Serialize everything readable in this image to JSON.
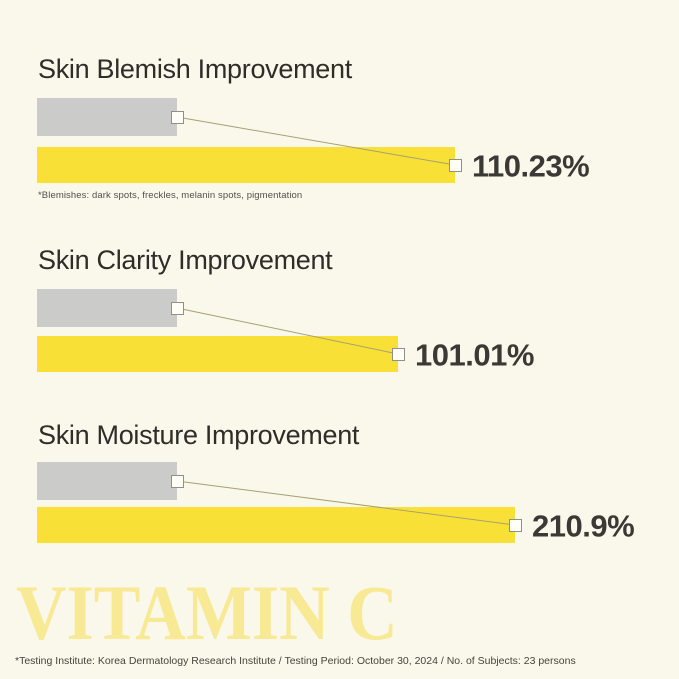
{
  "page": {
    "product_name": "VITAMIN C",
    "footer_note": "*Testing Institute: Korea Dermatology Research Institute / Testing Period: October 30, 2024 / No. of Subjects: 23 persons",
    "background_color": "#faf8ea"
  },
  "chart_data": {
    "type": "bar",
    "orientation": "horizontal",
    "unit": "%",
    "grid": false,
    "legend_position": "none",
    "series_meaning": "each group shows a short gray baseline bar (before) and a long yellow bar (after) linked by a connector line with square handles; only the after value is labeled",
    "groups": [
      {
        "title": "Skin Blemish Improvement",
        "value": 110.23,
        "value_label": "110.23%",
        "footnote": "*Blemishes: dark spots, freckles, melanin spots, pigmentation"
      },
      {
        "title": "Skin Clarity Improvement",
        "value": 101.01,
        "value_label": "101.01%",
        "footnote": ""
      },
      {
        "title": "Skin Moisture Improvement",
        "value": 210.9,
        "value_label": "210.9%",
        "footnote": ""
      }
    ],
    "colors": {
      "background": "#faf8ea",
      "before_bar": "#cbcbc9",
      "after_bar": "#f9e037",
      "connector_line": "#a6a171",
      "marker_fill": "#fffef7",
      "marker_border": "#90908a",
      "title_text": "#2e2d29",
      "value_text": "#3a3935",
      "footnote_text": "#52504a",
      "product_text": "#f8e995",
      "footer_text": "#45443f"
    }
  }
}
